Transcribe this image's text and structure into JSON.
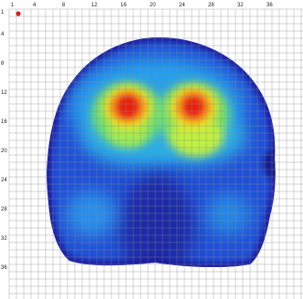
{
  "chart_data": {
    "type": "heatmap",
    "title": "",
    "xlabel": "",
    "ylabel": "",
    "x_ticks": [
      "1",
      "4",
      "8",
      "12",
      "16",
      "20",
      "24",
      "28",
      "32",
      "36"
    ],
    "y_ticks": [
      "1",
      "4",
      "8",
      "12",
      "16",
      "20",
      "24",
      "28",
      "32",
      "36"
    ],
    "grid": true,
    "grid_cells": 40,
    "origin_marker": {
      "x": 1,
      "y": 1,
      "color": "#e01818"
    },
    "colormap": [
      "#1a1aa8",
      "#1f55e0",
      "#24a8f0",
      "#3fe0c8",
      "#b8f040",
      "#f8e020",
      "#f89018",
      "#e82010"
    ],
    "hotspots": [
      {
        "x": 15.6,
        "y": 13.4,
        "intensity": 1.0
      },
      {
        "x": 23.4,
        "y": 13.4,
        "intensity": 0.95
      }
    ]
  }
}
